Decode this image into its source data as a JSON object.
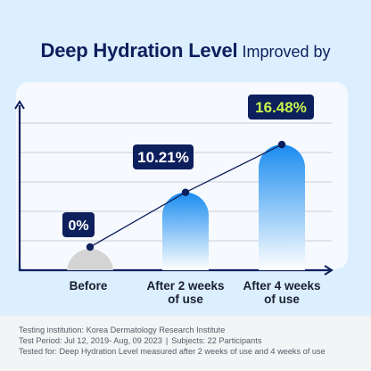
{
  "title": {
    "main": "Deep Hydration Level",
    "sub": "Improved by"
  },
  "chart_data": {
    "type": "bar",
    "categories": [
      "Before",
      "After 2 weeks of use",
      "After 4 weeks of use"
    ],
    "category_lines": [
      [
        "Before"
      ],
      [
        "After 2 weeks",
        "of use"
      ],
      [
        "After 4 weeks",
        "of use"
      ]
    ],
    "values": [
      0,
      10.21,
      16.48
    ],
    "value_labels": [
      "0%",
      "10.21%",
      "16.48%"
    ],
    "trend_line": true,
    "grid": true,
    "ylim": [
      0,
      20
    ],
    "title": "Deep Hydration Level Improved by",
    "xlabel": "",
    "ylabel": "",
    "colors": {
      "before_bar": "#d4d4d4",
      "bar_top": "#1a8cf0",
      "bar_bottom": "#ffffff",
      "label_bg": "#0d1f5c",
      "label_text": "#ffffff",
      "highlight_text": "#c8f54a",
      "line": "#0d1f5c"
    }
  },
  "footer": {
    "institution": "Testing institution: Korea Dermatology Research Institute",
    "period": "Test Period: Jul 12, 2019- Aug, 09 2023",
    "separator": "|",
    "subjects": "Subjects: 22 Participants",
    "tested_for": "Tested for: Deep Hydration Level measured after 2 weeks of use and 4 weeks of use"
  }
}
